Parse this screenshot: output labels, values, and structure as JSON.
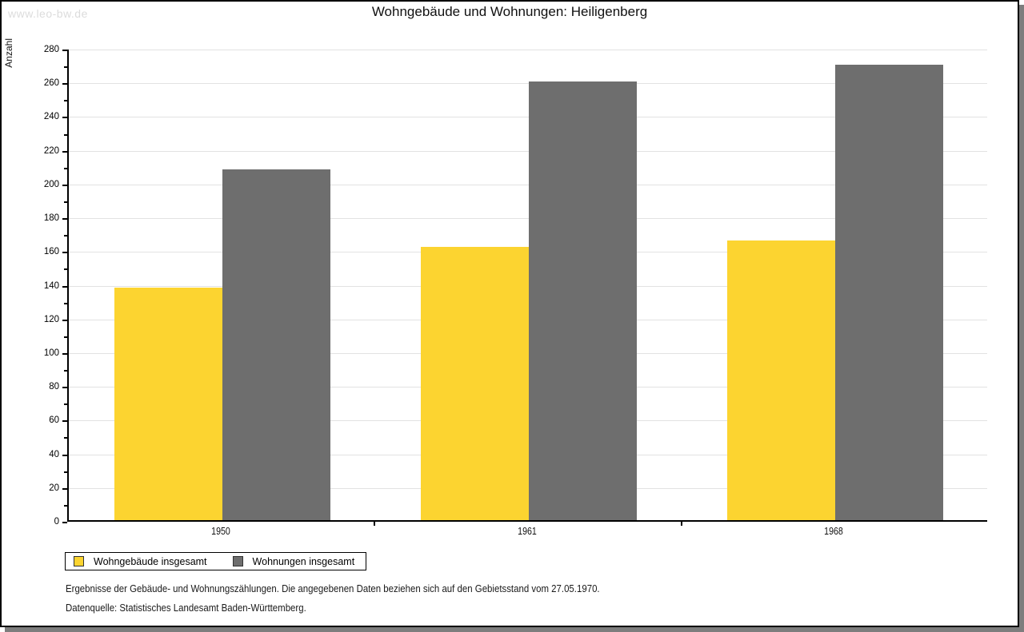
{
  "watermark": "www.leo-bw.de",
  "title": "Wohngebäude und Wohnungen: Heiligenberg",
  "chart_data": {
    "type": "bar",
    "title": "Wohngebäude und Wohnungen: Heiligenberg",
    "xlabel": "",
    "ylabel": "Anzahl",
    "categories": [
      "1950",
      "1961",
      "1968"
    ],
    "series": [
      {
        "name": "Wohngebäude insgesamt",
        "color": "#fcd430",
        "values": [
          138,
          162,
          166
        ]
      },
      {
        "name": "Wohnungen insgesamt",
        "color": "#6e6e6e",
        "values": [
          208,
          260,
          270
        ]
      }
    ],
    "ylim": [
      0,
      280
    ],
    "ytick_step": 20,
    "yminor_step": 10,
    "grid": "horizontal-major",
    "legend_position": "bottom-left"
  },
  "legend": {
    "items": [
      {
        "label": "Wohngebäude insgesamt",
        "color": "#fcd430"
      },
      {
        "label": "Wohnungen insgesamt",
        "color": "#6e6e6e"
      }
    ]
  },
  "footnotes": [
    "Ergebnisse der Gebäude- und Wohnungszählungen. Die angegebenen Daten beziehen sich auf den Gebietsstand vom 27.05.1970.",
    "Datenquelle: Statistisches Landesamt Baden-Württemberg."
  ],
  "colors": {
    "grid": "#e2e2e2",
    "axis": "#000000",
    "shadow": "#7d7d7d",
    "watermark": "#dcdcdc"
  }
}
